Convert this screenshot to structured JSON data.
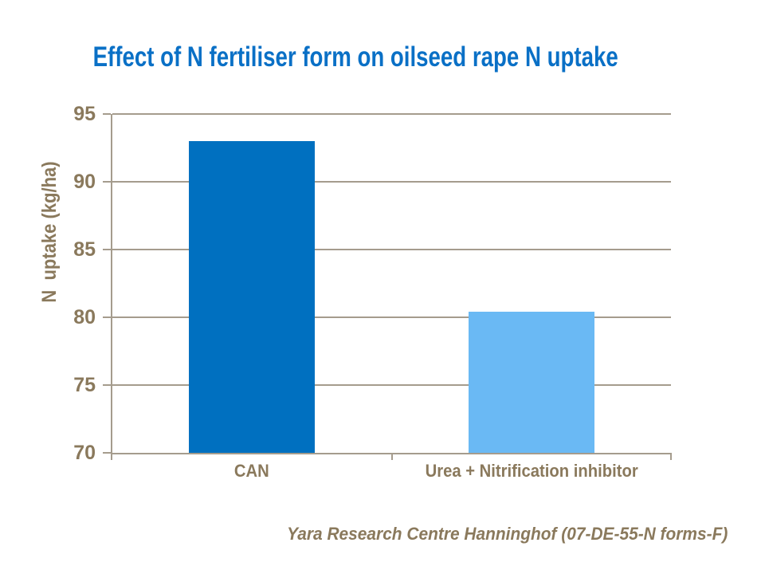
{
  "slide": {
    "title": "Effect of N fertiliser form on oilseed rape N uptake",
    "footer": "Yara Research Centre Hanninghof (07-DE-55-N forms-F)"
  },
  "chart_data": {
    "type": "bar",
    "title": "Effect of N fertiliser form on oilseed rape N uptake",
    "categories": [
      "CAN",
      "Urea + Nitrification inhibitor"
    ],
    "values": [
      93,
      80.4
    ],
    "xlabel": "",
    "ylabel": "N  uptake (kg/ha)",
    "ylim": [
      70,
      95
    ],
    "yticks": [
      70,
      75,
      80,
      85,
      90,
      95
    ],
    "grid": true,
    "legend": "none",
    "bar_colors": [
      "#0070C0",
      "#6AB9F4"
    ],
    "colors": {
      "title_text": "#0A70C6",
      "axis_text": "#8A795C",
      "line": "#A59C8D",
      "background": "#FFFFFF"
    }
  }
}
